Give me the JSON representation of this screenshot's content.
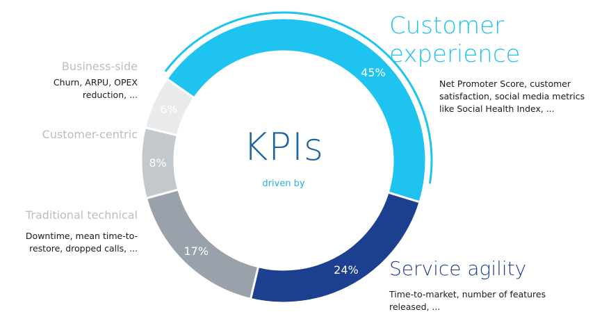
{
  "center": {
    "title": "KPIs",
    "subtitle": "driven by"
  },
  "chart_data": {
    "type": "pie",
    "variant": "donut",
    "title": "",
    "slices": [
      {
        "name": "Customer experience",
        "value": 45,
        "label": "45%",
        "color": "#1ec3ef",
        "description": "Net Promoter Score, customer satisfaction, social media metrics like Social Health Index, ..."
      },
      {
        "name": "Service agility",
        "value": 24,
        "label": "24%",
        "color": "#1d3f8f",
        "description": "Time-to-market, number of features released, ..."
      },
      {
        "name": "Traditional technical",
        "value": 17,
        "label": "17%",
        "color": "#99a2ab",
        "description": "Downtime, mean time-to-restore, dropped calls, ..."
      },
      {
        "name": "Customer-centric",
        "value": 8,
        "label": "8%",
        "color": "#c3c8cd",
        "description": ""
      },
      {
        "name": "Business-side",
        "value": 6,
        "label": "6%",
        "color": "#e8eaec",
        "description": "Churn, ARPU, OPEX reduction, ..."
      }
    ],
    "highlight_arc_color": "#1ec3ef"
  }
}
